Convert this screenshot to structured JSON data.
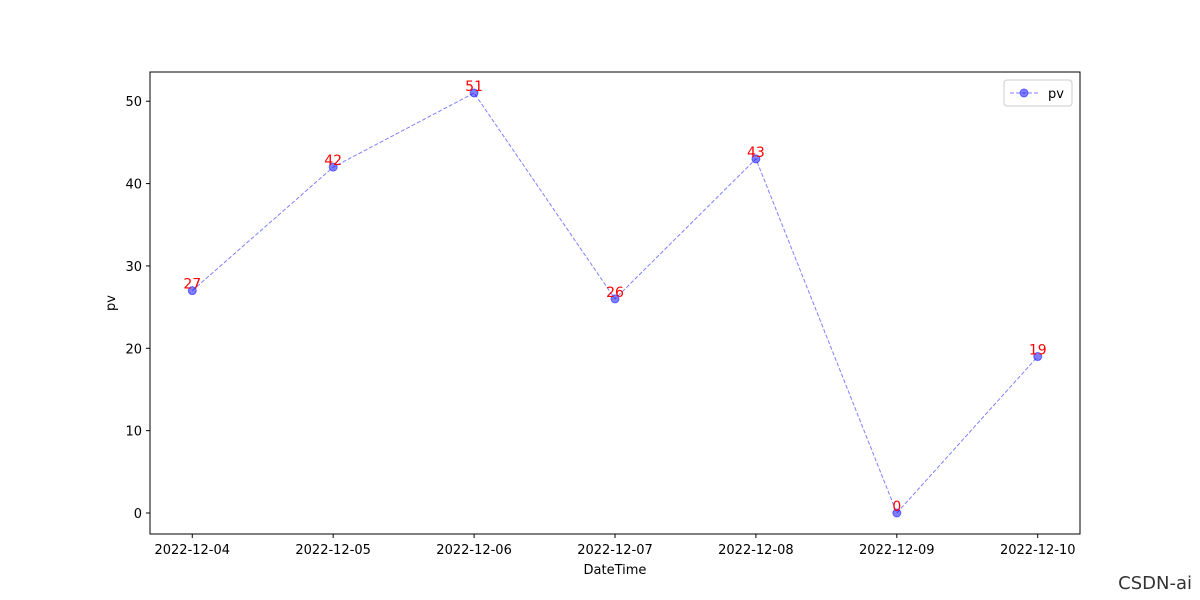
{
  "chart_data": {
    "type": "line",
    "x_label": "DateTime",
    "y_label": "pv",
    "categories": [
      "2022-12-04",
      "2022-12-05",
      "2022-12-06",
      "2022-12-07",
      "2022-12-08",
      "2022-12-09",
      "2022-12-10"
    ],
    "series": [
      {
        "name": "pv",
        "color": "#0000ff",
        "values": [
          27,
          42,
          51,
          26,
          43,
          0,
          19
        ]
      }
    ],
    "data_label_color": "#ff0000",
    "ylim": [
      -2.55,
      53.55
    ],
    "yticks": [
      0,
      10,
      20,
      30,
      40,
      50
    ],
    "grid": false,
    "legend": "upper right",
    "watermark": "CSDN-ai"
  }
}
